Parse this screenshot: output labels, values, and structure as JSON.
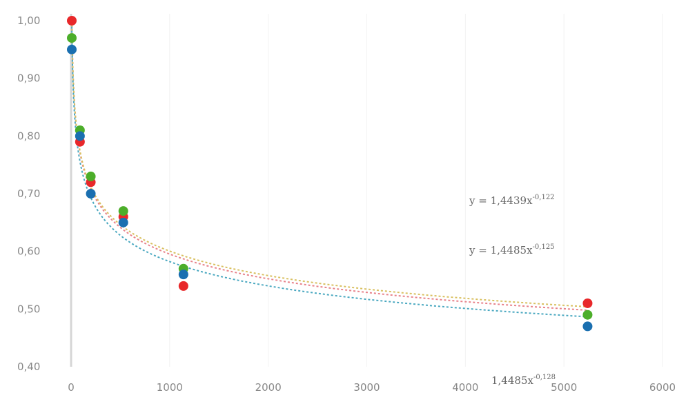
{
  "chart_data": {
    "type": "scatter",
    "title": "",
    "xlabel": "",
    "ylabel": "",
    "xlim": [
      0,
      6000
    ],
    "ylim": [
      0.4,
      1.0
    ],
    "x_ticks": [
      0,
      1000,
      2000,
      3000,
      4000,
      5000,
      6000
    ],
    "x_tick_labels": [
      "0",
      "1000",
      "2000",
      "3000",
      "4000",
      "5000",
      "6000"
    ],
    "y_ticks": [
      0.4,
      0.5,
      0.6,
      0.7,
      0.8,
      0.9,
      1.0
    ],
    "y_tick_labels": [
      "0,40",
      "0,50",
      "0,60",
      "0,70",
      "0,80",
      "0,90",
      "1,00"
    ],
    "grid": {
      "x": true,
      "y": false
    },
    "legend": "none",
    "trendline": "power",
    "series": [
      {
        "color": "#e8282a",
        "x": [
          7,
          90,
          200,
          530,
          1140,
          5240
        ],
        "y": [
          1.0,
          0.79,
          0.72,
          0.66,
          0.54,
          0.51
        ]
      },
      {
        "color": "#4cae2a",
        "x": [
          7,
          90,
          200,
          530,
          1140,
          5240
        ],
        "y": [
          0.97,
          0.81,
          0.73,
          0.67,
          0.57,
          0.49
        ]
      },
      {
        "color": "#1a6fb0",
        "x": [
          7,
          90,
          200,
          530,
          1140,
          5240
        ],
        "y": [
          0.95,
          0.8,
          0.7,
          0.65,
          0.56,
          0.47
        ]
      }
    ],
    "trend_colors": [
      "#e8828a",
      "#d9c060",
      "#4aa8c0"
    ],
    "annotations": [
      {
        "text": "y = 1,4439x",
        "exponent": "-0,122"
      },
      {
        "text": "y = 1,4485x",
        "exponent": "-0,125"
      },
      {
        "text": "1,4485x",
        "exponent": "-0,128"
      }
    ]
  }
}
